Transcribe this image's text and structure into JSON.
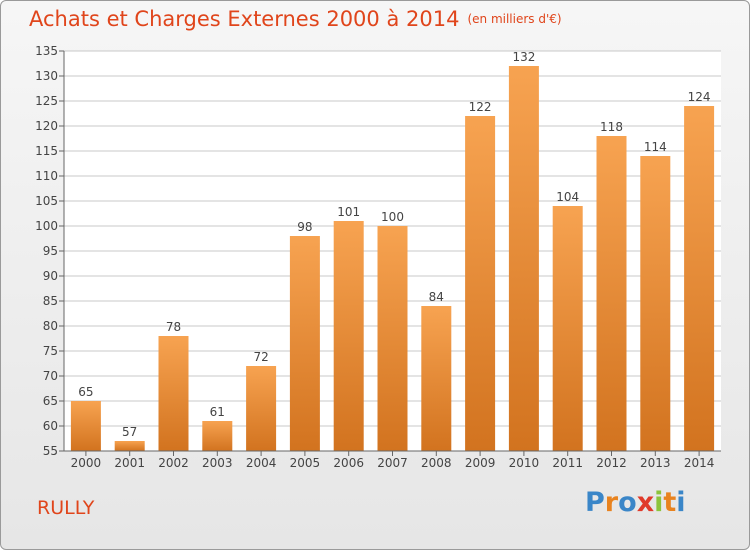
{
  "title": "Achats et Charges Externes 2000 à 2014",
  "unit": "(en milliers d'€)",
  "commune": "RULLY",
  "brand": {
    "letters": [
      "P",
      "r",
      "o",
      "x",
      "i",
      "t",
      "i"
    ],
    "colors": [
      "#3a86c8",
      "#e8831f",
      "#3a86c8",
      "#e03a2a",
      "#8cc43c",
      "#e8831f",
      "#3a86c8"
    ]
  },
  "colors": {
    "bar_light": "#f7a351",
    "bar_dark": "#d2731f",
    "title": "#e0451b",
    "grid": "#c8c8c8"
  },
  "chart_data": {
    "type": "bar",
    "categories": [
      "2000",
      "2001",
      "2002",
      "2003",
      "2004",
      "2005",
      "2006",
      "2007",
      "2008",
      "2009",
      "2010",
      "2011",
      "2012",
      "2013",
      "2014"
    ],
    "values": [
      65,
      57,
      78,
      61,
      72,
      98,
      101,
      100,
      84,
      122,
      132,
      104,
      118,
      114,
      124
    ],
    "ylim": [
      55,
      135
    ],
    "yticks": [
      55,
      60,
      65,
      70,
      75,
      80,
      85,
      90,
      95,
      100,
      105,
      110,
      115,
      120,
      125,
      130,
      135
    ],
    "grid": true
  }
}
